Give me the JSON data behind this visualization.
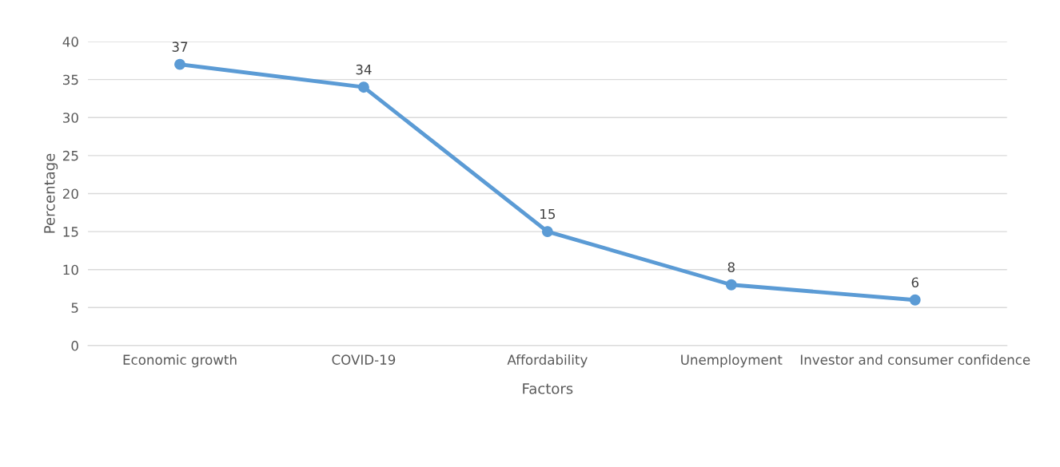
{
  "chart_data": {
    "type": "line",
    "xlabel": "Factors",
    "ylabel": "Percentage",
    "categories": [
      "Economic growth",
      "COVID-19",
      "Affordability",
      "Unemployment",
      "Investor and consumer confidence"
    ],
    "series": [
      {
        "color": "#5b9bd5",
        "values": [
          37,
          34,
          15,
          8,
          6
        ]
      }
    ],
    "ylim": [
      0,
      40
    ],
    "yticks": [
      0,
      5,
      10,
      15,
      20,
      25,
      30,
      35,
      40
    ],
    "grid": "y",
    "legend": false,
    "marker": "circle",
    "line_style": "solid",
    "data_labels": true
  }
}
